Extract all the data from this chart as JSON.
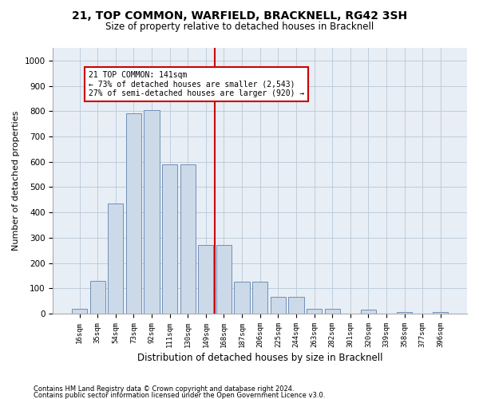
{
  "title": "21, TOP COMMON, WARFIELD, BRACKNELL, RG42 3SH",
  "subtitle": "Size of property relative to detached houses in Bracknell",
  "xlabel": "Distribution of detached houses by size in Bracknell",
  "ylabel": "Number of detached properties",
  "annotation_line1": "21 TOP COMMON: 141sqm",
  "annotation_line2": "← 73% of detached houses are smaller (2,543)",
  "annotation_line3": "27% of semi-detached houses are larger (920) →",
  "footer_line1": "Contains HM Land Registry data © Crown copyright and database right 2024.",
  "footer_line2": "Contains public sector information licensed under the Open Government Licence v3.0.",
  "bar_color": "#ccd9e8",
  "bar_edgecolor": "#7090b8",
  "vline_color": "#cc0000",
  "annotation_box_color": "#cc0000",
  "background_color": "#ffffff",
  "plot_bg_color": "#e8eef5",
  "grid_color": "#b8c8d8",
  "categories": [
    "16sqm",
    "35sqm",
    "54sqm",
    "73sqm",
    "92sqm",
    "111sqm",
    "130sqm",
    "149sqm",
    "168sqm",
    "187sqm",
    "206sqm",
    "225sqm",
    "244sqm",
    "263sqm",
    "282sqm",
    "301sqm",
    "320sqm",
    "339sqm",
    "358sqm",
    "377sqm",
    "396sqm"
  ],
  "values": [
    18,
    130,
    435,
    790,
    805,
    590,
    590,
    270,
    270,
    125,
    125,
    65,
    65,
    20,
    20,
    0,
    15,
    0,
    5,
    0,
    5
  ],
  "vline_x": 7.5,
  "ylim": [
    0,
    1050
  ],
  "yticks": [
    0,
    100,
    200,
    300,
    400,
    500,
    600,
    700,
    800,
    900,
    1000
  ]
}
